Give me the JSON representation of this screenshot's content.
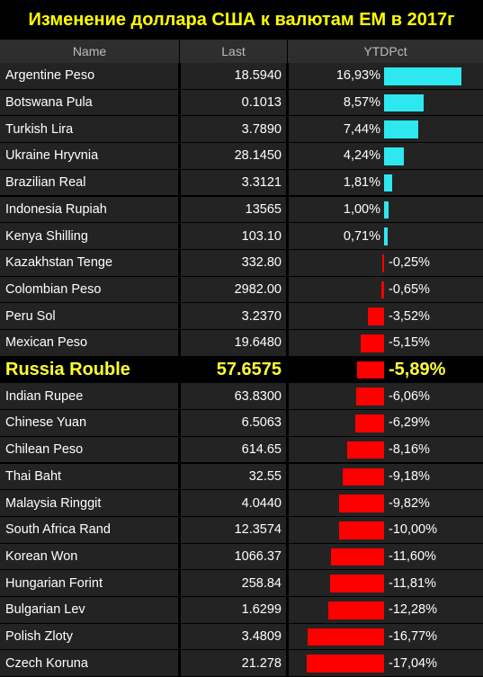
{
  "title": "Изменение доллара США к валютам ЕМ в 2017г",
  "headers": {
    "name": "Name",
    "last": "Last",
    "ytd": "YTDPct"
  },
  "colors": {
    "positive": "#2ee8f0",
    "negative": "#ff0000",
    "highlight": "#ffff33",
    "title": "#ffff00"
  },
  "chart_data": {
    "type": "bar",
    "title": "Изменение доллара США к валютам ЕМ в 2017г",
    "columns": [
      "Name",
      "Last",
      "YTDPct"
    ],
    "rows": [
      {
        "name": "Argentine Peso",
        "last": "18.5940",
        "pct_label": "16,93%",
        "value": 16.93
      },
      {
        "name": "Botswana Pula",
        "last": "0.1013",
        "pct_label": "8,57%",
        "value": 8.57
      },
      {
        "name": "Turkish Lira",
        "last": "3.7890",
        "pct_label": "7,44%",
        "value": 7.44
      },
      {
        "name": "Ukraine Hryvnia",
        "last": "28.1450",
        "pct_label": "4,24%",
        "value": 4.24
      },
      {
        "name": "Brazilian Real",
        "last": "3.3121",
        "pct_label": "1,81%",
        "value": 1.81
      },
      {
        "name": "Indonesia Rupiah",
        "last": "13565",
        "pct_label": "1,00%",
        "value": 1.0
      },
      {
        "name": "Kenya Shilling",
        "last": "103.10",
        "pct_label": "0,71%",
        "value": 0.71
      },
      {
        "name": "Kazakhstan Tenge",
        "last": "332.80",
        "pct_label": "-0,25%",
        "value": -0.25
      },
      {
        "name": "Colombian Peso",
        "last": "2982.00",
        "pct_label": "-0,65%",
        "value": -0.65
      },
      {
        "name": "Peru Sol",
        "last": "3.2370",
        "pct_label": "-3,52%",
        "value": -3.52
      },
      {
        "name": "Mexican Peso",
        "last": "19.6480",
        "pct_label": "-5,15%",
        "value": -5.15
      },
      {
        "name": "Russia Rouble",
        "last": "57.6575",
        "pct_label": "-5,89%",
        "value": -5.89,
        "highlight": true
      },
      {
        "name": "Indian Rupee",
        "last": "63.8300",
        "pct_label": "-6,06%",
        "value": -6.06
      },
      {
        "name": "Chinese Yuan",
        "last": "6.5063",
        "pct_label": "-6,29%",
        "value": -6.29
      },
      {
        "name": "Chilean Peso",
        "last": "614.65",
        "pct_label": "-8,16%",
        "value": -8.16
      },
      {
        "name": "Thai Baht",
        "last": "32.55",
        "pct_label": "-9,18%",
        "value": -9.18
      },
      {
        "name": "Malaysia Ringgit",
        "last": "4.0440",
        "pct_label": "-9,82%",
        "value": -9.82
      },
      {
        "name": "South Africa Rand",
        "last": "12.3574",
        "pct_label": "-10,00%",
        "value": -10.0
      },
      {
        "name": "Korean Won",
        "last": "1066.37",
        "pct_label": "-11,60%",
        "value": -11.6
      },
      {
        "name": "Hungarian Forint",
        "last": "258.84",
        "pct_label": "-11,81%",
        "value": -11.81
      },
      {
        "name": "Bulgarian Lev",
        "last": "1.6299",
        "pct_label": "-12,28%",
        "value": -12.28
      },
      {
        "name": "Polish Zloty",
        "last": "3.4809",
        "pct_label": "-16,77%",
        "value": -16.77
      },
      {
        "name": "Czech Koruna",
        "last": "21.278",
        "pct_label": "-17,04%",
        "value": -17.04
      }
    ]
  }
}
